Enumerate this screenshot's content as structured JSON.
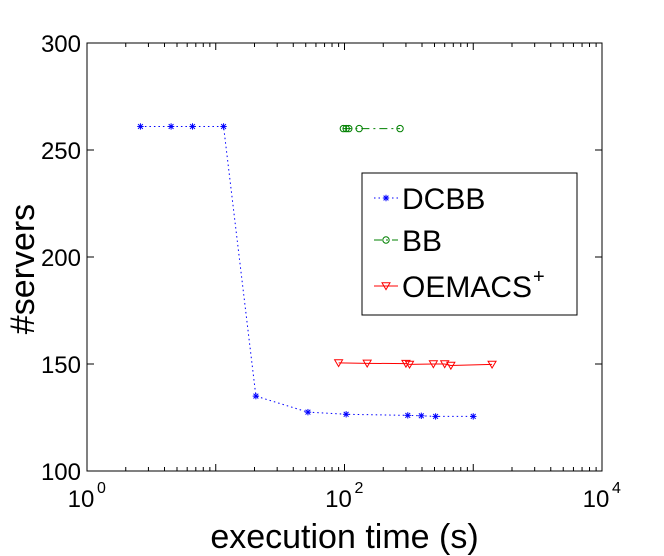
{
  "chart_data": {
    "type": "line",
    "title": "",
    "xlabel": "execution time (s)",
    "ylabel": "#servers",
    "xscale": "log",
    "xlim": [
      1,
      10000
    ],
    "ylim": [
      100,
      300
    ],
    "grid": false,
    "legend_position": "right-middle",
    "x_ticks": [
      {
        "value": 1,
        "base": "10",
        "exp": "0"
      },
      {
        "value": 100,
        "base": "10",
        "exp": "2"
      },
      {
        "value": 10000,
        "base": "10",
        "exp": "4"
      }
    ],
    "y_ticks": [
      {
        "value": 100,
        "label": "100"
      },
      {
        "value": 150,
        "label": "150"
      },
      {
        "value": 200,
        "label": "200"
      },
      {
        "value": 250,
        "label": "250"
      },
      {
        "value": 300,
        "label": "300"
      }
    ],
    "series": [
      {
        "name": "DCBB",
        "legend_label": "DCBB",
        "legend_sup": "",
        "color": "#0000ff",
        "line_style": "dotted",
        "marker": "asterisk",
        "x": [
          2.6,
          4.5,
          6.6,
          11.5,
          20.5,
          52,
          103,
          310,
          395,
          510,
          1000
        ],
        "y": [
          261,
          261,
          261,
          261,
          135,
          127.5,
          126.5,
          126,
          125.8,
          125.5,
          125.5
        ]
      },
      {
        "name": "BB",
        "legend_label": "BB",
        "legend_sup": "",
        "color": "#008000",
        "line_style": "dashdot",
        "marker": "circle",
        "x": [
          98,
          103,
          108,
          130,
          270
        ],
        "y": [
          260,
          260,
          260,
          260,
          260
        ]
      },
      {
        "name": "OEMACS+",
        "legend_label": "OEMACS",
        "legend_sup": "+",
        "color": "#ff0000",
        "line_style": "solid",
        "marker": "triangle-down",
        "x": [
          90,
          150,
          300,
          320,
          490,
          600,
          670,
          1400
        ],
        "y": [
          150.5,
          150.3,
          150.2,
          149.8,
          150,
          150,
          149.3,
          149.8
        ]
      }
    ]
  }
}
